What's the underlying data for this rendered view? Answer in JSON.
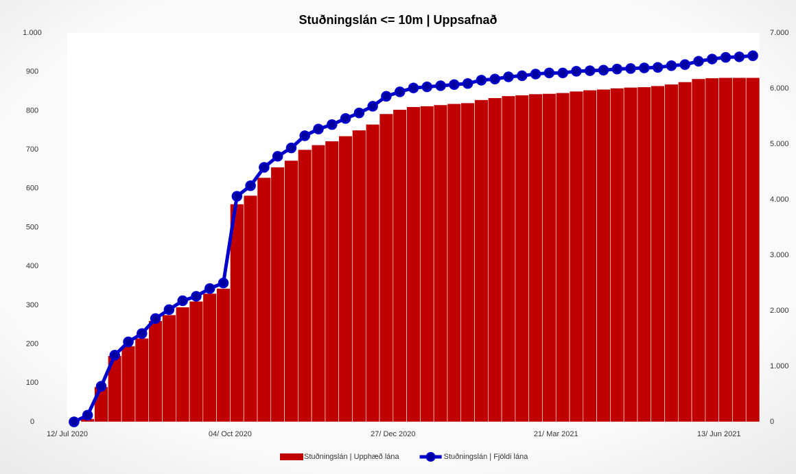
{
  "chart_data": {
    "type": "bar",
    "title": "Stuðningslán <= 10m | Uppsafnað",
    "categories": [
      "12/ Jul 2020",
      null,
      null,
      null,
      null,
      null,
      null,
      null,
      null,
      null,
      null,
      null,
      "04/ Oct 2020",
      null,
      null,
      null,
      null,
      null,
      null,
      null,
      null,
      null,
      null,
      null,
      "27/ Dec 2020",
      null,
      null,
      null,
      null,
      null,
      null,
      null,
      null,
      null,
      null,
      null,
      "21/ Mar 2021",
      null,
      null,
      null,
      null,
      null,
      null,
      null,
      null,
      null,
      null,
      null,
      "13/ Jun 2021",
      null,
      null
    ],
    "series": [
      {
        "name": "Stuðningslán | Upphæð lána",
        "type": "bar",
        "color": "#c00000",
        "values": [
          0,
          8,
          90,
          170,
          195,
          215,
          260,
          275,
          295,
          310,
          330,
          343,
          560,
          582,
          628,
          655,
          672,
          700,
          712,
          722,
          735,
          750,
          765,
          792,
          803,
          810,
          812,
          815,
          818,
          820,
          828,
          833,
          838,
          840,
          843,
          844,
          846,
          850,
          853,
          855,
          858,
          860,
          861,
          864,
          868,
          874,
          882,
          884,
          885,
          885,
          885
        ]
      },
      {
        "name": "Stuðningslán | Fjöldi lána",
        "type": "line",
        "color": "#0000cc",
        "axis": "y2",
        "values": [
          0,
          120,
          640,
          1200,
          1440,
          1590,
          1860,
          2020,
          2180,
          2260,
          2400,
          2500,
          4060,
          4250,
          4580,
          4780,
          4930,
          5150,
          5270,
          5350,
          5460,
          5560,
          5680,
          5860,
          5940,
          6010,
          6030,
          6050,
          6070,
          6090,
          6150,
          6170,
          6210,
          6230,
          6260,
          6280,
          6280,
          6310,
          6320,
          6330,
          6350,
          6360,
          6370,
          6380,
          6410,
          6430,
          6490,
          6530,
          6560,
          6570,
          6590
        ]
      }
    ],
    "ylim": [
      0,
      1000
    ],
    "yticks": [
      0,
      100,
      200,
      300,
      400,
      500,
      600,
      700,
      800,
      900,
      {
        "value": 1000,
        "label": "1.000"
      }
    ],
    "y2lim": [
      0,
      7000
    ],
    "y2ticks": [
      0,
      {
        "value": 1000,
        "label": "1.000"
      },
      {
        "value": 2000,
        "label": "2.000"
      },
      {
        "value": 3000,
        "label": "3.000"
      },
      {
        "value": 4000,
        "label": "4.000"
      },
      {
        "value": 5000,
        "label": "5.000"
      },
      {
        "value": 6000,
        "label": "6.000"
      },
      {
        "value": 7000,
        "label": "7.000"
      }
    ],
    "legend": "bottom"
  }
}
